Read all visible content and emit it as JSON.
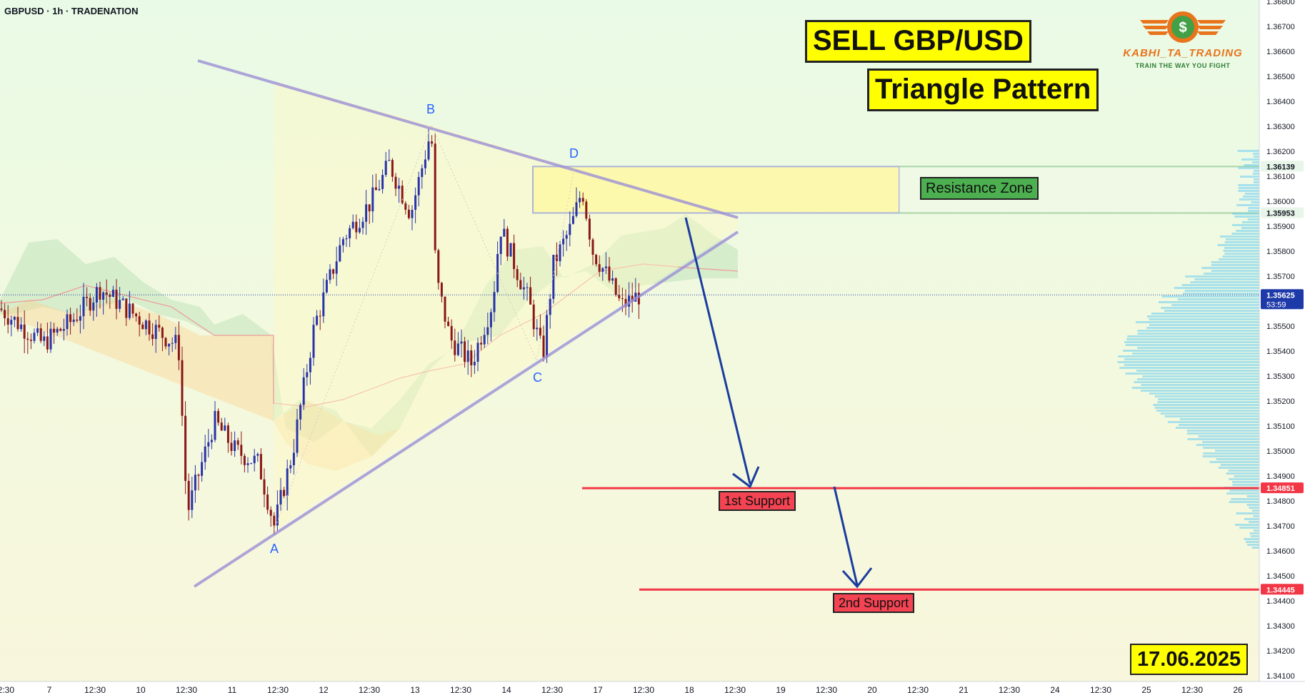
{
  "symbol": "GBPUSD · 1h · TRADENATION",
  "title_main": "SELL GBP/USD",
  "title_pattern": "Triangle Pattern",
  "date": "17.06.2025",
  "logo": {
    "brand": "KABHI_TA_TRADING",
    "tagline": "TRAIN THE WAY YOU FIGHT",
    "icon": "dollar-coin-wings-icon"
  },
  "colors": {
    "bull": "#2933a8",
    "bear": "#8a1717",
    "resistance": "#4caf50",
    "support": "#f23645",
    "triangle": "#9c8fd6",
    "accent": "#ffff00",
    "price_tag": "#1e3aa8"
  },
  "annotations": {
    "resistance": "Resistance Zone",
    "support1": "1st Support",
    "support2": "2nd Support",
    "points": [
      "A",
      "B",
      "C",
      "D"
    ]
  },
  "chart_data": {
    "type": "candlestick",
    "pattern": "ascending/descending triangle",
    "y_axis": {
      "ylim": [
        1.3405,
        1.3682
      ],
      "ticks": [
        "1.36800",
        "1.36700",
        "1.36600",
        "1.36500",
        "1.36400",
        "1.36300",
        "1.36200",
        "1.36100",
        "1.36000",
        "1.35900",
        "1.35800",
        "1.35700",
        "1.35500",
        "1.35400",
        "1.35300",
        "1.35200",
        "1.35100",
        "1.35000",
        "1.34900",
        "1.34800",
        "1.34700",
        "1.34600",
        "1.34500",
        "1.34400",
        "1.34300",
        "1.34200",
        "1.34100"
      ]
    },
    "x_axis": {
      "ticks": [
        "12:30",
        "7",
        "12:30",
        "10",
        "12:30",
        "11",
        "12:30",
        "12",
        "12:30",
        "13",
        "12:30",
        "14",
        "12:30",
        "17",
        "12:30",
        "18",
        "12:30",
        "19",
        "12:30",
        "20",
        "12:30",
        "21",
        "12:30",
        "24",
        "12:30",
        "25",
        "12:30",
        "26"
      ]
    },
    "price_tags": [
      {
        "value": "1.36139",
        "color": "#e8f5e9",
        "text_color": "#131722"
      },
      {
        "value": "1.35953",
        "color": "#e8f5e9",
        "text_color": "#131722"
      },
      {
        "value": "1.35625",
        "sub": "53:59",
        "color": "#1e3aa8",
        "text_color": "#ffffff"
      },
      {
        "value": "1.34851",
        "color": "#f23645",
        "text_color": "#ffffff"
      },
      {
        "value": "1.34445",
        "color": "#f23645",
        "text_color": "#ffffff"
      }
    ],
    "current_price": 1.35625,
    "resistance_zone": [
      1.35953,
      1.36139
    ],
    "support_levels": [
      1.34851,
      1.34445
    ],
    "triangle_points": {
      "A": 1.3467,
      "B": 1.3631,
      "C": 1.3536,
      "D": 1.3614
    }
  }
}
